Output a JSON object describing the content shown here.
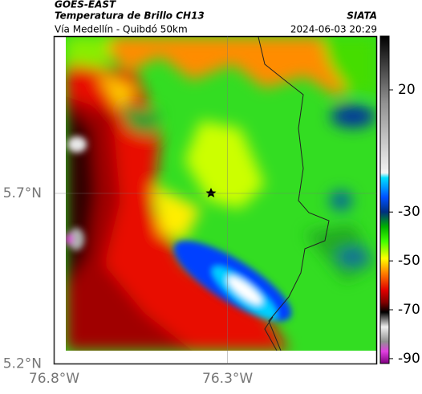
{
  "header": {
    "title": "GOES-EAST",
    "subtitle": "Temperatura de Brillo CH13",
    "route": "Vía Medellín - Quibdó 50km",
    "source": "SIATA",
    "datetime": "2024-06-03 20:29"
  },
  "map": {
    "lat_range": [
      5.2,
      6.16
    ],
    "lon_range": [
      -76.8,
      -75.87
    ],
    "lat_ticks": [
      {
        "value": 5.7,
        "label": "5.7°N"
      },
      {
        "value": 5.2,
        "label": "5.2°N"
      }
    ],
    "lon_ticks": [
      {
        "value": -76.8,
        "label": "76.8°W"
      },
      {
        "value": -76.3,
        "label": "76.3°W"
      }
    ],
    "colorbar": {
      "range": [
        42,
        -92
      ],
      "ticks": [
        20,
        -30,
        -50,
        -70,
        -90
      ],
      "stops": [
        {
          "value": 42,
          "color": "#000000"
        },
        {
          "value": 30,
          "color": "#404040"
        },
        {
          "value": 15,
          "color": "#909090"
        },
        {
          "value": -14,
          "color": "#f4f4f4"
        },
        {
          "value": -16,
          "color": "#00e0ff"
        },
        {
          "value": -24,
          "color": "#0050ff"
        },
        {
          "value": -30,
          "color": "#003080"
        },
        {
          "value": -36,
          "color": "#00b000"
        },
        {
          "value": -42,
          "color": "#40ff00"
        },
        {
          "value": -49,
          "color": "#ffff00"
        },
        {
          "value": -55,
          "color": "#ff8000"
        },
        {
          "value": -62,
          "color": "#e00000"
        },
        {
          "value": -67,
          "color": "#800000"
        },
        {
          "value": -71,
          "color": "#000000"
        },
        {
          "value": -77,
          "color": "#f0f0f0"
        },
        {
          "value": -83,
          "color": "#909090"
        },
        {
          "value": -87,
          "color": "#e040e0"
        },
        {
          "value": -92,
          "color": "#800080"
        }
      ]
    }
  }
}
